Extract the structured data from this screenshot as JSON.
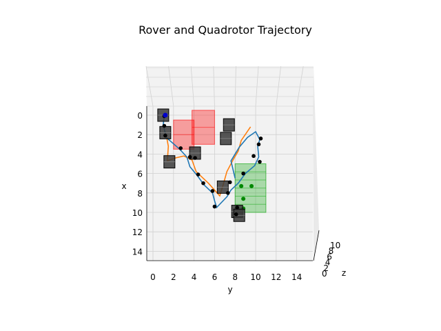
{
  "chart_data": {
    "type": "scatter",
    "title": "Rover and Quadrotor Trajectory",
    "xlabel": "y",
    "ylabel": "x",
    "zlabel": "z",
    "xlim": [
      0,
      15
    ],
    "ylim": [
      0,
      15
    ],
    "x_ticks": [
      "0",
      "2",
      "4",
      "6",
      "8",
      "10",
      "12",
      "14"
    ],
    "y_ticks": [
      "0",
      "2",
      "4",
      "6",
      "8",
      "10",
      "12",
      "14"
    ],
    "z_ticks": [
      "0",
      "2",
      "4",
      "6",
      "8",
      "10"
    ],
    "grid": true,
    "colors": {
      "trajectory_blue": "#1f77b4",
      "trajectory_orange": "#ff7f0e",
      "obstacle_red": "#ff0000",
      "goal_green": "#00a000",
      "waypoint": "#000000",
      "start_marker": "#0000cc",
      "box": "#3a3a3a"
    },
    "blue_path": [
      [
        1.1,
        0.0
      ],
      [
        1.0,
        1.0
      ],
      [
        1.3,
        2.3
      ],
      [
        2.6,
        3.5
      ],
      [
        3.3,
        4.3
      ],
      [
        3.6,
        5.3
      ],
      [
        4.3,
        6.2
      ],
      [
        5.0,
        7.2
      ],
      [
        5.8,
        8.0
      ],
      [
        6.0,
        8.8
      ],
      [
        6.2,
        9.5
      ],
      [
        7.2,
        8.4
      ],
      [
        7.6,
        7.7
      ],
      [
        8.3,
        7.0
      ],
      [
        9.0,
        6.0
      ],
      [
        9.9,
        5.2
      ],
      [
        10.3,
        4.3
      ],
      [
        10.2,
        3.2
      ],
      [
        10.4,
        2.5
      ],
      [
        10.0,
        1.7
      ],
      [
        9.2,
        2.3
      ],
      [
        8.4,
        3.3
      ],
      [
        7.6,
        4.7
      ],
      [
        8.0,
        6.5
      ]
    ],
    "orange_path": [
      [
        1.3,
        2.1
      ],
      [
        1.5,
        3.2
      ],
      [
        1.4,
        4.7
      ],
      [
        2.2,
        4.4
      ],
      [
        3.0,
        4.2
      ],
      [
        3.8,
        4.6
      ],
      [
        4.2,
        5.8
      ],
      [
        5.4,
        7.0
      ],
      [
        6.5,
        8.3
      ],
      [
        6.8,
        7.3
      ],
      [
        7.2,
        5.8
      ],
      [
        7.8,
        4.6
      ],
      [
        8.3,
        3.7
      ],
      [
        8.6,
        2.6
      ],
      [
        9.5,
        1.2
      ]
    ],
    "waypoints": [
      [
        1.1,
        0.1
      ],
      [
        1.1,
        1.1
      ],
      [
        1.2,
        2.1
      ],
      [
        2.7,
        3.4
      ],
      [
        3.6,
        4.3
      ],
      [
        4.1,
        4.4
      ],
      [
        4.4,
        6.1
      ],
      [
        4.9,
        7.0
      ],
      [
        5.8,
        7.8
      ],
      [
        6.0,
        9.4
      ],
      [
        7.3,
        8.0
      ],
      [
        7.5,
        6.9
      ],
      [
        8.8,
        6.0
      ],
      [
        9.8,
        4.2
      ],
      [
        10.3,
        3.0
      ],
      [
        10.5,
        2.4
      ],
      [
        10.4,
        4.8
      ],
      [
        8.2,
        9.5
      ],
      [
        8.1,
        10.2
      ]
    ],
    "start_point": [
      1.2,
      0.0
    ],
    "obstacles": [
      {
        "y0": 3.8,
        "y1": 6.0,
        "x0": -0.5,
        "x1": 3.0
      },
      {
        "y0": 2.0,
        "y1": 4.0,
        "x0": 0.5,
        "x1": 3.5
      }
    ],
    "goal_region": {
      "y0": 8.0,
      "y1": 11.0,
      "x0": 5.0,
      "x1": 10.0,
      "points": [
        [
          8.6,
          7.3
        ],
        [
          9.6,
          7.3
        ],
        [
          8.8,
          8.6
        ],
        [
          8.8,
          9.6
        ]
      ]
    },
    "boxes": [
      [
        1.0,
        0.0
      ],
      [
        1.2,
        1.8
      ],
      [
        1.6,
        4.8
      ],
      [
        4.1,
        3.9
      ],
      [
        6.8,
        7.4
      ],
      [
        7.1,
        2.4
      ],
      [
        7.4,
        1.0
      ],
      [
        8.2,
        9.9
      ],
      [
        8.4,
        10.3
      ]
    ]
  }
}
